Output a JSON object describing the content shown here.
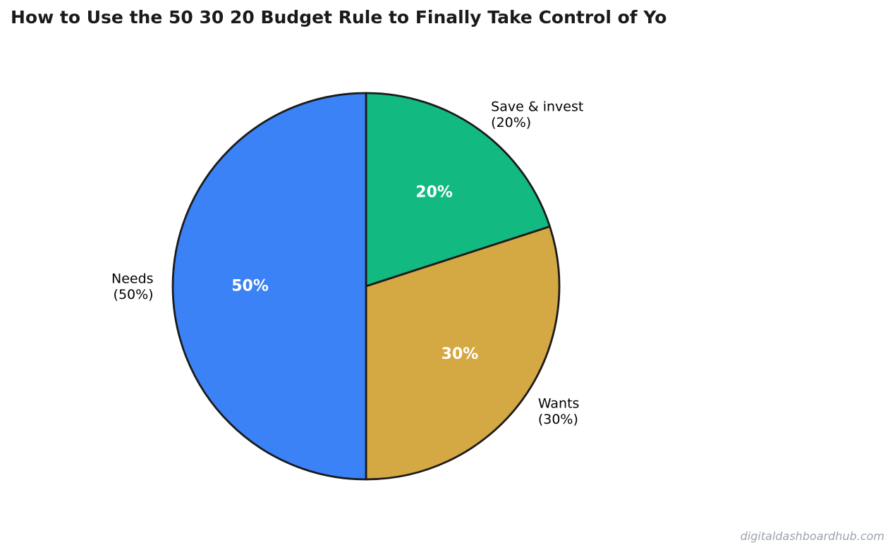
{
  "chart_data": {
    "type": "pie",
    "title": "How to Use the 50 30 20 Budget Rule to Finally Take Control of Yo",
    "start_angle_deg": 90,
    "direction": "clockwise",
    "slices": [
      {
        "label": "Save & invest",
        "label_line2": "(20%)",
        "value": 20,
        "pct_label": "20%",
        "color": "#12b981"
      },
      {
        "label": "Wants",
        "label_line2": "(30%)",
        "value": 30,
        "pct_label": "30%",
        "color": "#d4a843"
      },
      {
        "label": "Needs",
        "label_line2": "(50%)",
        "value": 50,
        "pct_label": "50%",
        "color": "#3b82f6"
      }
    ],
    "edge_color": "#1a1a1a"
  },
  "watermark": "digitaldashboardhub.com"
}
